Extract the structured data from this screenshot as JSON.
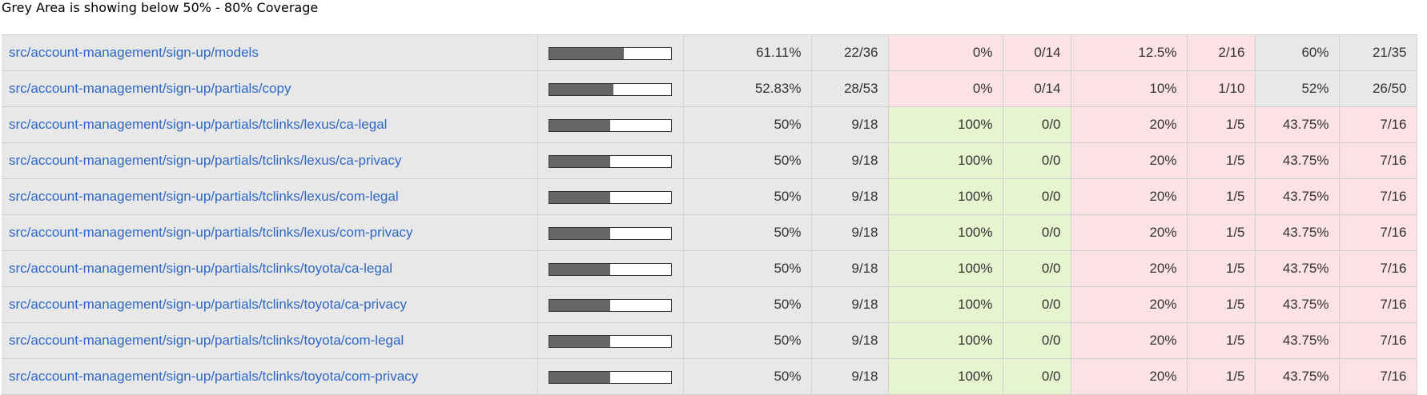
{
  "caption": "Grey Area is showing below 50% - 80% Coverage",
  "colors": {
    "low": "#fce1e5",
    "medium": "#e8e8e8",
    "high": "#e6f5d0",
    "link": "#2f67c4",
    "bar_fill": "#666666"
  },
  "rows": [
    {
      "file": "src/account-management/sign-up/models",
      "coverage_pct": 61.11,
      "statements": "61.11%",
      "statements_frac": "22/36",
      "branches": "0%",
      "branches_frac": "0/14",
      "functions": "12.5%",
      "functions_frac": "2/16",
      "lines": "60%",
      "lines_frac": "21/35"
    },
    {
      "file": "src/account-management/sign-up/partials/copy",
      "coverage_pct": 52.83,
      "statements": "52.83%",
      "statements_frac": "28/53",
      "branches": "0%",
      "branches_frac": "0/14",
      "functions": "10%",
      "functions_frac": "1/10",
      "lines": "52%",
      "lines_frac": "26/50"
    },
    {
      "file": "src/account-management/sign-up/partials/tclinks/lexus/ca-legal",
      "coverage_pct": 50,
      "statements": "50%",
      "statements_frac": "9/18",
      "branches": "100%",
      "branches_frac": "0/0",
      "functions": "20%",
      "functions_frac": "1/5",
      "lines": "43.75%",
      "lines_frac": "7/16"
    },
    {
      "file": "src/account-management/sign-up/partials/tclinks/lexus/ca-privacy",
      "coverage_pct": 50,
      "statements": "50%",
      "statements_frac": "9/18",
      "branches": "100%",
      "branches_frac": "0/0",
      "functions": "20%",
      "functions_frac": "1/5",
      "lines": "43.75%",
      "lines_frac": "7/16"
    },
    {
      "file": "src/account-management/sign-up/partials/tclinks/lexus/com-legal",
      "coverage_pct": 50,
      "statements": "50%",
      "statements_frac": "9/18",
      "branches": "100%",
      "branches_frac": "0/0",
      "functions": "20%",
      "functions_frac": "1/5",
      "lines": "43.75%",
      "lines_frac": "7/16"
    },
    {
      "file": "src/account-management/sign-up/partials/tclinks/lexus/com-privacy",
      "coverage_pct": 50,
      "statements": "50%",
      "statements_frac": "9/18",
      "branches": "100%",
      "branches_frac": "0/0",
      "functions": "20%",
      "functions_frac": "1/5",
      "lines": "43.75%",
      "lines_frac": "7/16"
    },
    {
      "file": "src/account-management/sign-up/partials/tclinks/toyota/ca-legal",
      "coverage_pct": 50,
      "statements": "50%",
      "statements_frac": "9/18",
      "branches": "100%",
      "branches_frac": "0/0",
      "functions": "20%",
      "functions_frac": "1/5",
      "lines": "43.75%",
      "lines_frac": "7/16"
    },
    {
      "file": "src/account-management/sign-up/partials/tclinks/toyota/ca-privacy",
      "coverage_pct": 50,
      "statements": "50%",
      "statements_frac": "9/18",
      "branches": "100%",
      "branches_frac": "0/0",
      "functions": "20%",
      "functions_frac": "1/5",
      "lines": "43.75%",
      "lines_frac": "7/16"
    },
    {
      "file": "src/account-management/sign-up/partials/tclinks/toyota/com-legal",
      "coverage_pct": 50,
      "statements": "50%",
      "statements_frac": "9/18",
      "branches": "100%",
      "branches_frac": "0/0",
      "functions": "20%",
      "functions_frac": "1/5",
      "lines": "43.75%",
      "lines_frac": "7/16"
    },
    {
      "file": "src/account-management/sign-up/partials/tclinks/toyota/com-privacy",
      "coverage_pct": 50,
      "statements": "50%",
      "statements_frac": "9/18",
      "branches": "100%",
      "branches_frac": "0/0",
      "functions": "20%",
      "functions_frac": "1/5",
      "lines": "43.75%",
      "lines_frac": "7/16"
    }
  ]
}
